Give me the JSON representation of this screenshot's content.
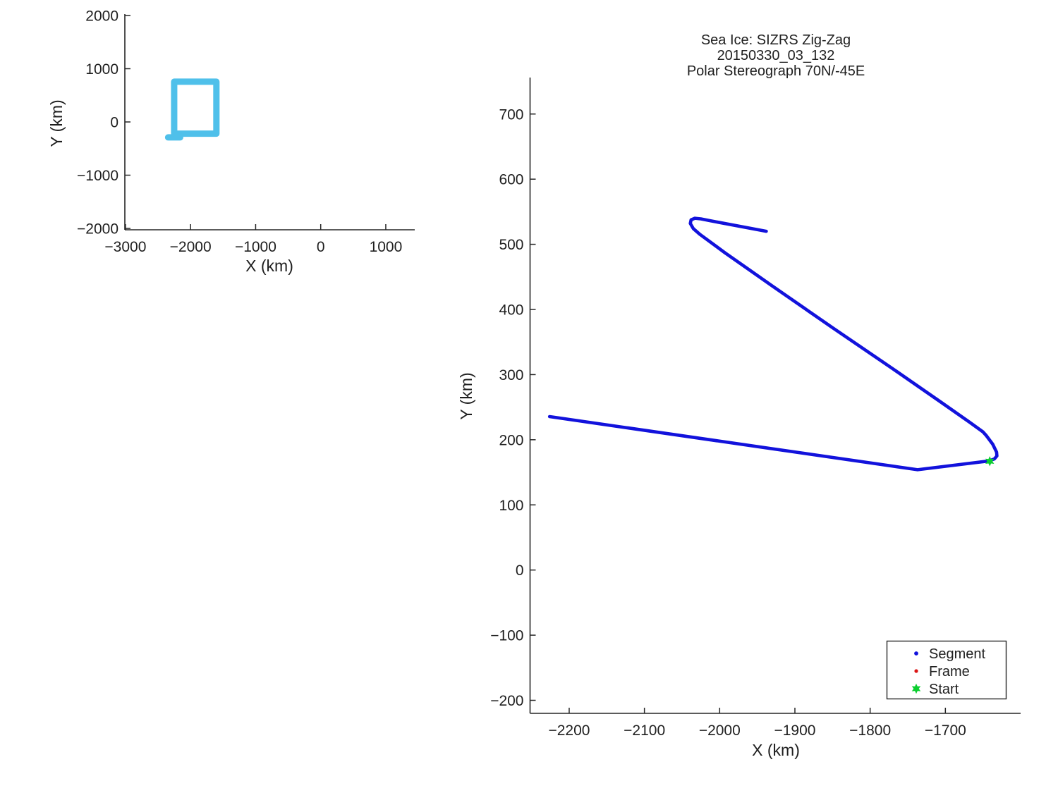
{
  "figure": {
    "background": "#ffffff",
    "axis_color": "#262626",
    "text_color": "#1f1f1f"
  },
  "chart_data": [
    {
      "id": "overview",
      "type": "line",
      "title": "",
      "xlabel": "X (km)",
      "ylabel": "Y (km)",
      "xlim": [
        -3010,
        1445
      ],
      "ylim": [
        -2026,
        2026
      ],
      "xticks": [
        -3000,
        -2000,
        -1000,
        0,
        1000
      ],
      "yticks": [
        -2000,
        -1000,
        0,
        1000,
        2000
      ],
      "grid": false,
      "series": [
        {
          "name": "survey-extent-box",
          "color": "#4FC0EA",
          "line_width": 9,
          "shape": "rect-outline",
          "x_range": [
            -2252,
            -1603
          ],
          "y_range": [
            -220,
            756
          ]
        },
        {
          "name": "extent-box-start-notch",
          "color": "#4FC0EA",
          "line_width": 9,
          "shape": "segment",
          "points": [
            [
              -2345,
              -290
            ],
            [
              -2160,
              -290
            ]
          ]
        }
      ]
    },
    {
      "id": "main",
      "type": "line",
      "title_lines": [
        "Sea Ice: SIZRS Zig-Zag",
        "20150330_03_132",
        "Polar Stereograph 70N/-45E"
      ],
      "xlabel": "X (km)",
      "ylabel": "Y (km)",
      "xlim": [
        -2252,
        -1600
      ],
      "ylim": [
        -220,
        756
      ],
      "xticks": [
        -2200,
        -2100,
        -2000,
        -1900,
        -1800,
        -1700
      ],
      "yticks": [
        -200,
        -100,
        0,
        100,
        200,
        300,
        400,
        500,
        600,
        700
      ],
      "grid": false,
      "legend": {
        "position": "bottom-right",
        "entries": [
          {
            "label": "Segment",
            "marker": "dot",
            "color": "#1212DC"
          },
          {
            "label": "Frame",
            "marker": "dot",
            "color": "#DB1515"
          },
          {
            "label": "Start",
            "marker": "hexagram",
            "color": "#0BCE2F"
          }
        ]
      },
      "series": [
        {
          "name": "Segment",
          "color": "#1212DC",
          "line_width": 4.6,
          "shape": "path",
          "points": [
            [
              -1938,
              520
            ],
            [
              -2012,
              536
            ],
            [
              -2025,
              539
            ],
            [
              -2033,
              540
            ],
            [
              -2038,
              537.5
            ],
            [
              -2039,
              532
            ],
            [
              -2035,
              524
            ],
            [
              -2026,
              515
            ],
            [
              -1993,
              487
            ],
            [
              -1930,
              436
            ],
            [
              -1850,
              372
            ],
            [
              -1770,
              309
            ],
            [
              -1705,
              257
            ],
            [
              -1668,
              227
            ],
            [
              -1650,
              212
            ],
            [
              -1646,
              207
            ],
            [
              -1637,
              193
            ],
            [
              -1632,
              181
            ],
            [
              -1631.5,
              175
            ],
            [
              -1635,
              170.5
            ],
            [
              -1642,
              167.5
            ],
            [
              -1737,
              154
            ],
            [
              -2226,
              235.5
            ]
          ]
        },
        {
          "name": "Start",
          "color": "#0BCE2F",
          "marker": "hexagram",
          "shape": "marker",
          "points": [
            [
              -1641,
              167
            ]
          ]
        }
      ]
    }
  ]
}
